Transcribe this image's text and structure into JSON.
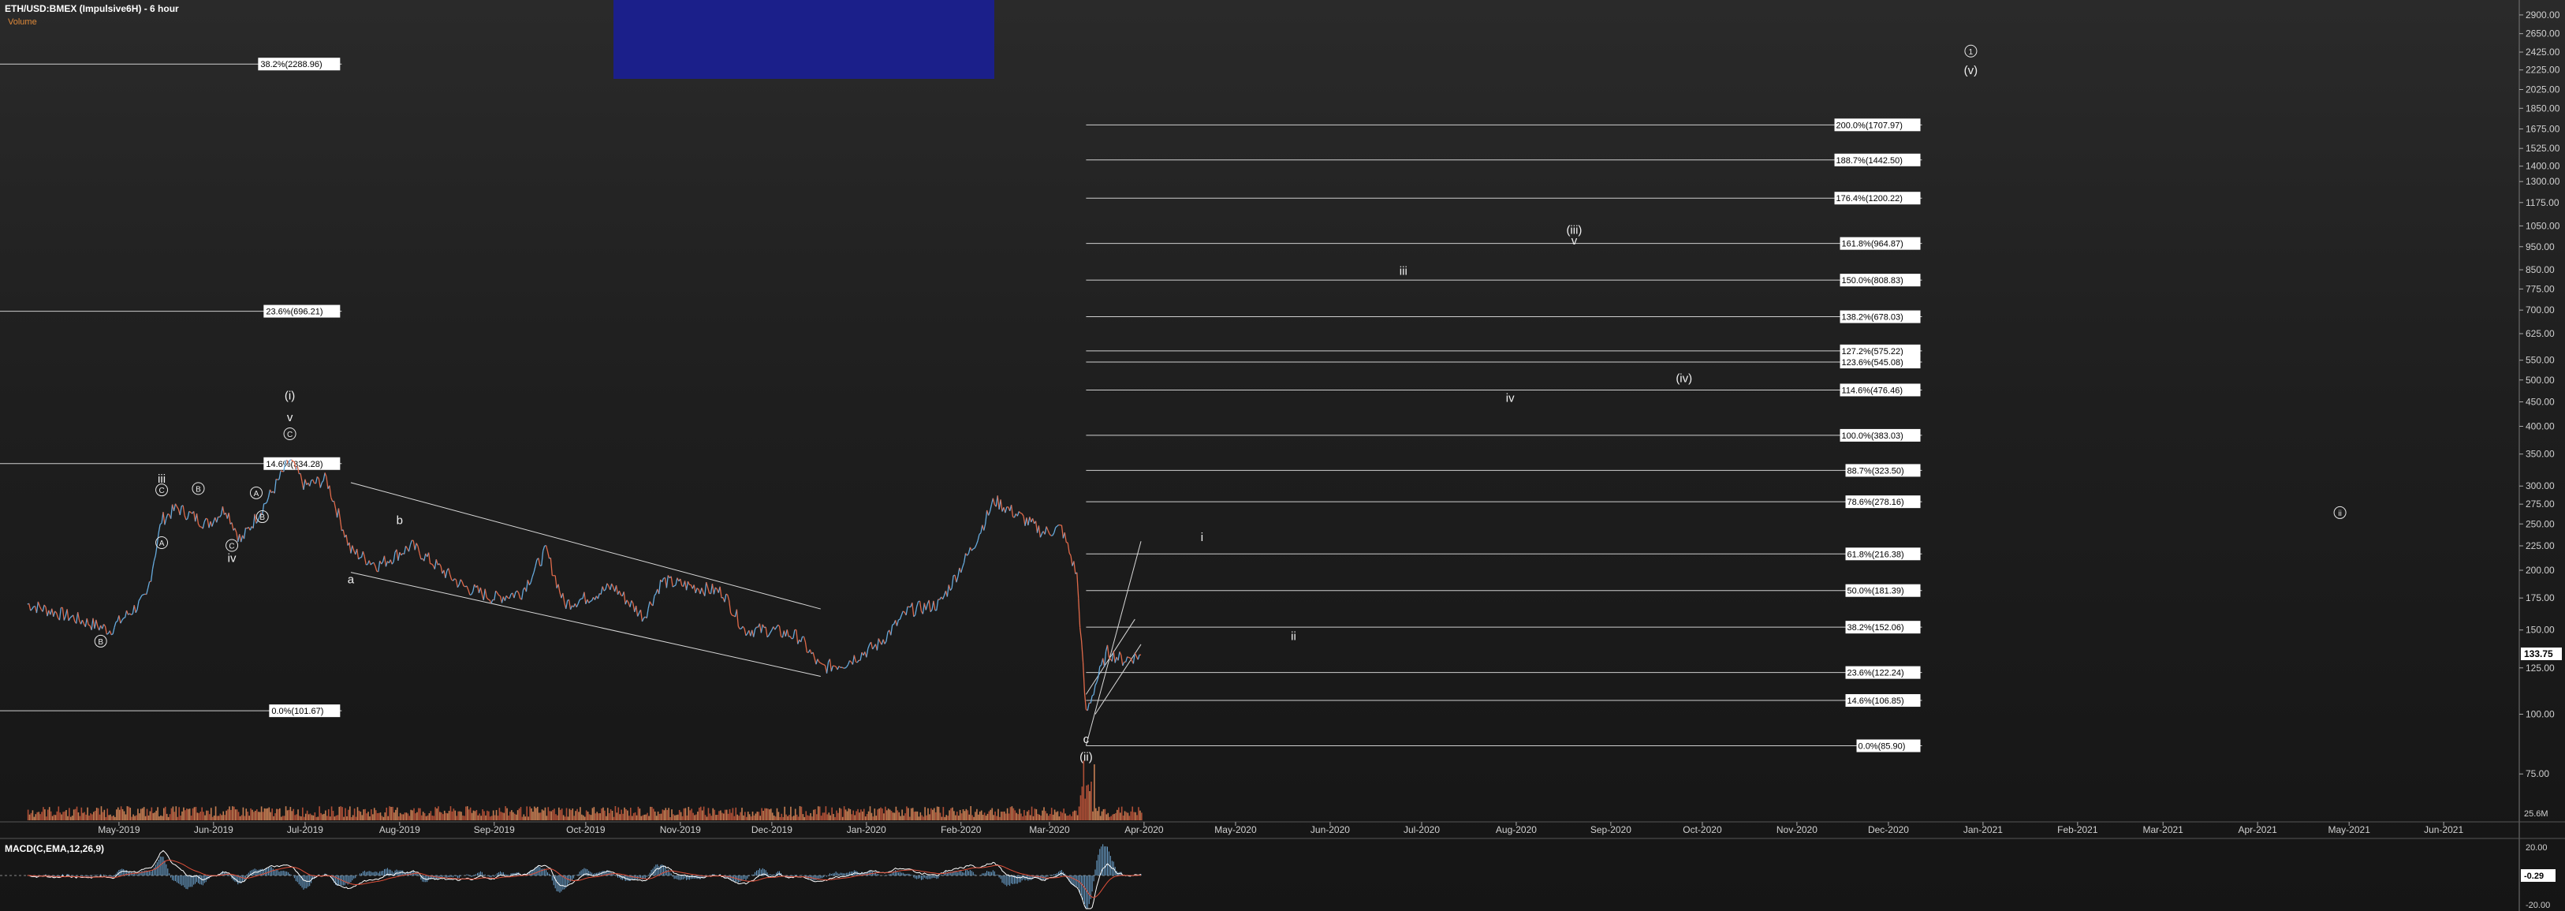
{
  "header": {
    "title": "ETH/USD:BMEX (Impulsive6H) - 6 hour",
    "volume_label": "Volume"
  },
  "macd": {
    "label": "MACD(C,EMA,12,26,9)",
    "axis_labels": [
      "20.00",
      "-0.29",
      "-20.00"
    ]
  },
  "chart_data": {
    "type": "line",
    "scale": "log",
    "ylim": [
      60,
      3000
    ],
    "y_ticks": [
      75,
      100,
      125,
      150,
      175,
      200,
      225,
      250,
      275,
      300,
      350,
      400,
      450,
      500,
      550,
      625,
      700,
      775,
      850,
      950,
      1050,
      1175,
      1300,
      1400,
      1525,
      1675,
      1850,
      2025,
      2225,
      2425,
      2650,
      2900
    ],
    "y_tick_labels": [
      "75.00",
      "100.00",
      "125.00",
      "150.00",
      "175.00",
      "200.00",
      "225.00",
      "250.00",
      "275.00",
      "300.00",
      "350.00",
      "400.00",
      "450.00",
      "500.00",
      "550.00",
      "625.00",
      "700.00",
      "775.00",
      "850.00",
      "950.00",
      "1050.00",
      "1175.00",
      "1300.00",
      "1400.00",
      "1525.00",
      "1675.00",
      "1850.00",
      "2025.00",
      "2225.00",
      "2425.00",
      "2650.00",
      "2900.00"
    ],
    "x_labels": [
      "May-2019",
      "Jun-2019",
      "Jul-2019",
      "Aug-2019",
      "Sep-2019",
      "Oct-2019",
      "Nov-2019",
      "Dec-2019",
      "Jan-2020",
      "Feb-2020",
      "Mar-2020",
      "Apr-2020",
      "May-2020",
      "Jun-2020",
      "Jul-2020",
      "Aug-2020",
      "Sep-2020",
      "Oct-2020",
      "Nov-2020",
      "Dec-2020",
      "Jan-2021",
      "Feb-2021",
      "Mar-2021",
      "Apr-2021",
      "May-2021",
      "Jun-2021"
    ],
    "price_series": {
      "x": [
        "2019-04-01",
        "2019-04-15",
        "2019-04-28",
        "2019-05-10",
        "2019-05-15",
        "2019-05-20",
        "2019-05-30",
        "2019-06-05",
        "2019-06-10",
        "2019-06-20",
        "2019-06-26",
        "2019-07-01",
        "2019-07-08",
        "2019-07-16",
        "2019-07-25",
        "2019-08-05",
        "2019-08-15",
        "2019-08-22",
        "2019-09-01",
        "2019-09-10",
        "2019-09-18",
        "2019-09-24",
        "2019-10-01",
        "2019-10-10",
        "2019-10-20",
        "2019-10-26",
        "2019-11-05",
        "2019-11-15",
        "2019-11-22",
        "2019-12-01",
        "2019-12-10",
        "2019-12-17",
        "2019-12-25",
        "2020-01-05",
        "2020-01-15",
        "2020-01-25",
        "2020-02-05",
        "2020-02-12",
        "2020-02-20",
        "2020-02-28",
        "2020-03-05",
        "2020-03-10",
        "2020-03-13",
        "2020-03-16",
        "2020-03-20",
        "2020-03-25",
        "2020-03-31"
      ],
      "y": [
        170,
        160,
        150,
        175,
        255,
        270,
        250,
        270,
        230,
        290,
        340,
        300,
        310,
        220,
        205,
        225,
        200,
        185,
        175,
        180,
        220,
        170,
        175,
        185,
        160,
        190,
        185,
        180,
        150,
        150,
        145,
        125,
        128,
        140,
        165,
        170,
        225,
        280,
        260,
        240,
        245,
        195,
        100,
        115,
        135,
        130,
        133
      ]
    },
    "last_price": "133.75",
    "fibonacci_2019": [
      {
        "label": "38.2%(2288.96)",
        "value": 2288.96
      },
      {
        "label": "23.6%(696.21)",
        "value": 696.21
      },
      {
        "label": "14.6%(334.28)",
        "value": 334.28
      },
      {
        "label": "0.0%(101.67)",
        "value": 101.67
      }
    ],
    "fibonacci_2020": [
      {
        "label": "200.0%(1707.97)",
        "value": 1707.97
      },
      {
        "label": "188.7%(1442.50)",
        "value": 1442.5
      },
      {
        "label": "176.4%(1200.22)",
        "value": 1200.22
      },
      {
        "label": "161.8%(964.87)",
        "value": 964.87
      },
      {
        "label": "150.0%(808.83)",
        "value": 808.83
      },
      {
        "label": "138.2%(678.03)",
        "value": 678.03
      },
      {
        "label": "127.2%(575.22)",
        "value": 575.22
      },
      {
        "label": "123.6%(545.08)",
        "value": 545.08
      },
      {
        "label": "114.6%(476.46)",
        "value": 476.46
      },
      {
        "label": "100.0%(383.03)",
        "value": 383.03
      },
      {
        "label": "88.7%(323.50)",
        "value": 323.5
      },
      {
        "label": "78.6%(278.16)",
        "value": 278.16
      },
      {
        "label": "61.8%(216.38)",
        "value": 216.38
      },
      {
        "label": "50.0%(181.39)",
        "value": 181.39
      },
      {
        "label": "38.2%(152.06)",
        "value": 152.06
      },
      {
        "label": "23.6%(122.24)",
        "value": 122.24
      },
      {
        "label": "14.6%(106.85)",
        "value": 106.85
      },
      {
        "label": "0.0%(85.90)",
        "value": 85.9
      }
    ],
    "wave_labels": [
      {
        "text": "iii",
        "date": "2019-05-15",
        "price": 305,
        "circled": false
      },
      {
        "text": "C",
        "date": "2019-05-15",
        "price": 290,
        "circled": true
      },
      {
        "text": "A",
        "date": "2019-05-15",
        "price": 225,
        "circled": true
      },
      {
        "text": "B",
        "date": "2019-05-27",
        "price": 292,
        "circled": true
      },
      {
        "text": "C",
        "date": "2019-06-07",
        "price": 222,
        "circled": true
      },
      {
        "text": "iv",
        "date": "2019-06-07",
        "price": 208,
        "circled": false
      },
      {
        "text": "A",
        "date": "2019-06-15",
        "price": 286,
        "circled": true
      },
      {
        "text": "B",
        "date": "2019-06-17",
        "price": 255,
        "circled": true
      },
      {
        "text": "(i)",
        "date": "2019-06-26",
        "price": 455,
        "circled": false
      },
      {
        "text": "v",
        "date": "2019-06-26",
        "price": 410,
        "circled": false
      },
      {
        "text": "C",
        "date": "2019-06-26",
        "price": 380,
        "circled": true
      },
      {
        "text": "B",
        "date": "2019-04-25",
        "price": 140,
        "circled": true
      },
      {
        "text": "b",
        "date": "2019-08-01",
        "price": 250,
        "circled": false
      },
      {
        "text": "a",
        "date": "2019-07-16",
        "price": 188,
        "circled": false
      },
      {
        "text": "c",
        "date": "2020-03-13",
        "price": 87,
        "circled": false
      },
      {
        "text": "(ii)",
        "date": "2020-03-13",
        "price": 80,
        "circled": false
      },
      {
        "text": "i",
        "date": "2020-04-20",
        "price": 230,
        "circled": false
      },
      {
        "text": "ii",
        "date": "2020-05-20",
        "price": 143,
        "circled": false
      },
      {
        "text": "iii",
        "date": "2020-06-25",
        "price": 830,
        "circled": false
      },
      {
        "text": "iv",
        "date": "2020-07-30",
        "price": 450,
        "circled": false
      },
      {
        "text": "(iii)",
        "date": "2020-08-20",
        "price": 1010,
        "circled": false
      },
      {
        "text": "v",
        "date": "2020-08-20",
        "price": 960,
        "circled": false
      },
      {
        "text": "(iv)",
        "date": "2020-09-25",
        "price": 495,
        "circled": false
      },
      {
        "text": "1",
        "date": "2020-12-28",
        "price": 2400,
        "circled": true
      },
      {
        "text": "(v)",
        "date": "2020-12-28",
        "price": 2180,
        "circled": false
      },
      {
        "text": "ii",
        "date": "2021-04-28",
        "price": 260,
        "circled": true
      }
    ],
    "volume_axis_label": "25.6M",
    "colors": {
      "up": "#66aadd",
      "down": "#e06a4a",
      "grid": "#ffffff",
      "blue_box": "#1b1f8a"
    }
  }
}
